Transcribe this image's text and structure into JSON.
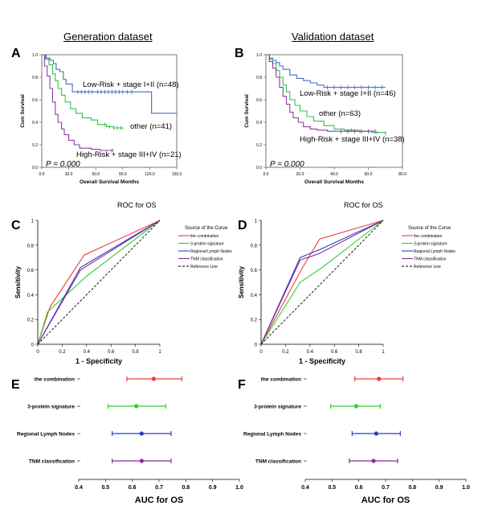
{
  "figure": {
    "heading_left": "Generation dataset",
    "heading_right": "Validation dataset",
    "panel_labels": [
      "A",
      "B",
      "C",
      "D",
      "E",
      "F"
    ],
    "roc_title": "ROC for OS"
  },
  "colors": {
    "combination": "#e8403a",
    "signature": "#33cc33",
    "lymph": "#2a3fbf",
    "tnm": "#8a2a9a",
    "reference": "#000000",
    "km_low": "#4a6cc0",
    "km_other": "#33c24a",
    "km_high": "#8e3aa0"
  },
  "chart_data": [
    {
      "id": "A",
      "type": "line",
      "subtype": "kaplan-meier",
      "ylabel": "Cum Survival",
      "xlabel": "Overall Survival Months",
      "xlim": [
        0,
        150
      ],
      "ylim": [
        0,
        1.0
      ],
      "xticks": [
        "0.0",
        "30.0",
        "60.0",
        "90.0",
        "120.0",
        "150.0"
      ],
      "yticks": [
        "0.0",
        "0.2",
        "0.4",
        "0.6",
        "0.8",
        "1.0"
      ],
      "pvalue": "P = 0.000",
      "series": [
        {
          "name": "Low-Risk + stage I+II (n=48)",
          "color_key": "km_low",
          "x": [
            0,
            5,
            9,
            13,
            16,
            20,
            24,
            27,
            34,
            120,
            122,
            150
          ],
          "y": [
            1.0,
            0.97,
            0.95,
            0.92,
            0.87,
            0.85,
            0.78,
            0.74,
            0.67,
            0.67,
            0.48,
            0.48
          ],
          "censor_x": [
            40,
            44,
            48,
            52,
            56,
            62,
            66,
            70,
            74,
            78,
            82,
            86,
            90,
            95,
            100
          ]
        },
        {
          "name": "other (n=41)",
          "color_key": "km_other",
          "x": [
            0,
            4,
            8,
            12,
            15,
            18,
            22,
            26,
            32,
            38,
            45,
            55,
            62,
            72,
            80,
            90
          ],
          "y": [
            1.0,
            0.96,
            0.91,
            0.83,
            0.77,
            0.7,
            0.64,
            0.58,
            0.52,
            0.48,
            0.44,
            0.42,
            0.38,
            0.36,
            0.35,
            0.34
          ],
          "censor_x": [
            70,
            75,
            80,
            84,
            88
          ]
        },
        {
          "name": "High-Risk + stage III+IV (n=21)",
          "color_key": "km_high",
          "x": [
            0,
            3,
            6,
            9,
            12,
            15,
            18,
            22,
            25,
            30,
            36,
            42,
            55,
            65,
            80
          ],
          "y": [
            1.0,
            0.9,
            0.81,
            0.7,
            0.58,
            0.47,
            0.4,
            0.34,
            0.29,
            0.24,
            0.2,
            0.17,
            0.16,
            0.15,
            0.15
          ],
          "censor_x": [
            78
          ]
        }
      ]
    },
    {
      "id": "B",
      "type": "line",
      "subtype": "kaplan-meier",
      "ylabel": "Cum Survival",
      "xlabel": "Overall Survival Months",
      "xlim": [
        0,
        80
      ],
      "ylim": [
        0,
        1.0
      ],
      "xticks": [
        "0.0",
        "20.0",
        "40.0",
        "60.0",
        "80.0"
      ],
      "yticks": [
        "0.0",
        "0.2",
        "0.4",
        "0.6",
        "0.8",
        "1.0"
      ],
      "pvalue": "P = 0.000",
      "series": [
        {
          "name": "Low-Risk + stage I+II (n=46)",
          "color_key": "km_low",
          "x": [
            0,
            2,
            4,
            6,
            8,
            10,
            14,
            18,
            22,
            26,
            30,
            34,
            70
          ],
          "y": [
            1.0,
            0.97,
            0.95,
            0.93,
            0.9,
            0.87,
            0.82,
            0.79,
            0.77,
            0.75,
            0.73,
            0.71,
            0.71
          ],
          "censor_x": [
            36,
            40,
            44,
            48,
            52,
            56,
            60,
            64,
            68
          ]
        },
        {
          "name": "other (n=63)",
          "color_key": "km_other",
          "x": [
            0,
            2,
            4,
            6,
            8,
            10,
            12,
            14,
            17,
            20,
            24,
            28,
            34,
            40,
            46,
            54,
            62,
            70
          ],
          "y": [
            1.0,
            0.96,
            0.92,
            0.86,
            0.8,
            0.73,
            0.67,
            0.6,
            0.55,
            0.5,
            0.45,
            0.41,
            0.37,
            0.34,
            0.33,
            0.32,
            0.31,
            0.3
          ],
          "censor_x": [
            50,
            55,
            60,
            65,
            70
          ]
        },
        {
          "name": "High-Risk + stage III+IV (n=38)",
          "color_key": "km_high",
          "x": [
            0,
            2,
            4,
            6,
            8,
            10,
            12,
            14,
            16,
            19,
            22,
            26,
            30,
            36,
            44,
            54,
            64
          ],
          "y": [
            1.0,
            0.94,
            0.88,
            0.8,
            0.71,
            0.63,
            0.56,
            0.49,
            0.44,
            0.4,
            0.36,
            0.34,
            0.33,
            0.32,
            0.32,
            0.32,
            0.32
          ],
          "censor_x": [
            44,
            48,
            52,
            56,
            60,
            64
          ]
        }
      ]
    },
    {
      "id": "C",
      "type": "line",
      "subtype": "roc",
      "xlabel": "1 - Specificity",
      "ylabel": "Sensitivity",
      "xlim": [
        0,
        1.0
      ],
      "ylim": [
        0,
        1.0
      ],
      "xticks": [
        "0",
        "0.2",
        "0.4",
        "0.6",
        "0.8",
        "1"
      ],
      "yticks": [
        "0",
        "0.2",
        "0.4",
        "0.6",
        "0.8",
        "1"
      ],
      "legend_title": "Source of the Curve",
      "series": [
        {
          "name": "the combination",
          "color_key": "combination",
          "x": [
            0,
            0.1,
            0.38,
            1
          ],
          "y": [
            0,
            0.3,
            0.72,
            1
          ]
        },
        {
          "name": "3-protein signature",
          "color_key": "signature",
          "x": [
            0,
            0.08,
            0.4,
            1
          ],
          "y": [
            0,
            0.26,
            0.55,
            1
          ]
        },
        {
          "name": "Regional Lymph Nodes",
          "color_key": "lymph",
          "x": [
            0,
            0.35,
            1
          ],
          "y": [
            0,
            0.62,
            1
          ]
        },
        {
          "name": "TNM classification",
          "color_key": "tnm",
          "x": [
            0,
            0.35,
            1
          ],
          "y": [
            0,
            0.6,
            1
          ]
        },
        {
          "name": "Reference Line",
          "color_key": "reference",
          "dashed": true,
          "x": [
            0,
            1
          ],
          "y": [
            0,
            1
          ]
        }
      ]
    },
    {
      "id": "D",
      "type": "line",
      "subtype": "roc",
      "xlabel": "1 - Specificity",
      "ylabel": "Sensitivity",
      "xlim": [
        0,
        1.0
      ],
      "ylim": [
        0,
        1.0
      ],
      "xticks": [
        "0",
        "0.2",
        "0.4",
        "0.6",
        "0.8",
        "1"
      ],
      "yticks": [
        "0",
        "0.2",
        "0.4",
        "0.6",
        "0.8",
        "1"
      ],
      "legend_title": "Source of the Curve",
      "series": [
        {
          "name": "the combination",
          "color_key": "combination",
          "x": [
            0,
            0.34,
            0.48,
            1
          ],
          "y": [
            0,
            0.62,
            0.85,
            1
          ]
        },
        {
          "name": "3-protein signature",
          "color_key": "signature",
          "x": [
            0,
            0.32,
            0.5,
            1
          ],
          "y": [
            0,
            0.5,
            0.62,
            1
          ]
        },
        {
          "name": "Regional Lymph Nodes",
          "color_key": "lymph",
          "x": [
            0,
            0.32,
            0.47,
            1
          ],
          "y": [
            0,
            0.7,
            0.76,
            1
          ]
        },
        {
          "name": "TNM classification",
          "color_key": "tnm",
          "x": [
            0,
            0.32,
            0.47,
            1
          ],
          "y": [
            0,
            0.68,
            0.73,
            1
          ]
        },
        {
          "name": "Reference Line",
          "color_key": "reference",
          "dashed": true,
          "x": [
            0,
            1
          ],
          "y": [
            0,
            1
          ]
        }
      ]
    },
    {
      "id": "E",
      "type": "scatter",
      "subtype": "forest",
      "xlabel": "AUC for OS",
      "xlim": [
        0.4,
        1.0
      ],
      "xticks": [
        "0.4",
        "0.5",
        "0.6",
        "0.7",
        "0.8",
        "0.9",
        "1.0"
      ],
      "categories": [
        "the combination",
        "3-protein signature",
        "Regional Lymph Nodes",
        "TNM classification"
      ],
      "color_keys": [
        "combination",
        "signature",
        "lymph",
        "tnm"
      ],
      "values": [
        0.68,
        0.615,
        0.635,
        0.635
      ],
      "lower": [
        0.58,
        0.51,
        0.525,
        0.525
      ],
      "upper": [
        0.785,
        0.725,
        0.745,
        0.745
      ]
    },
    {
      "id": "F",
      "type": "scatter",
      "subtype": "forest",
      "xlabel": "AUC for OS",
      "xlim": [
        0.4,
        1.0
      ],
      "xticks": [
        "0.4",
        "0.5",
        "0.6",
        "0.7",
        "0.8",
        "0.9",
        "1.0"
      ],
      "categories": [
        "the combination",
        "3-protein signature",
        "Regional Lymph Nodes",
        "TNM classification"
      ],
      "color_keys": [
        "combination",
        "signature",
        "lymph",
        "tnm"
      ],
      "values": [
        0.675,
        0.59,
        0.665,
        0.655
      ],
      "lower": [
        0.585,
        0.495,
        0.575,
        0.565
      ],
      "upper": [
        0.765,
        0.68,
        0.755,
        0.745
      ]
    }
  ]
}
